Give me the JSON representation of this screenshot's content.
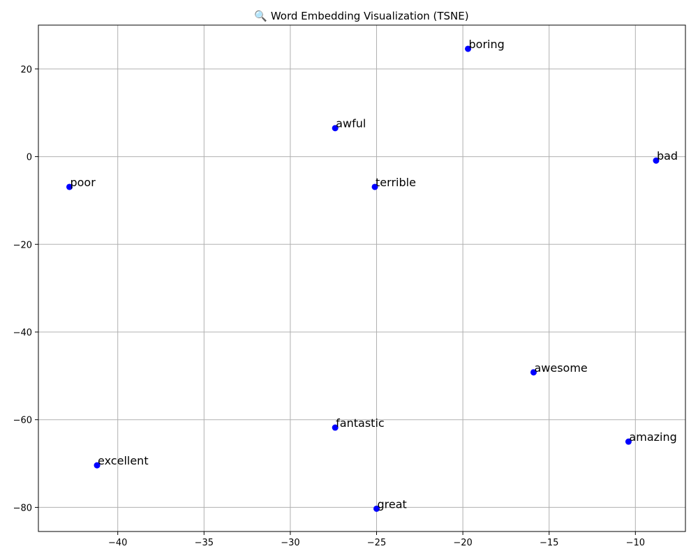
{
  "chart_data": {
    "type": "scatter",
    "title": "🔍 Word Embedding Visualization (TSNE)",
    "xlabel": "",
    "ylabel": "",
    "xlim": [
      -44.6,
      -7.1
    ],
    "ylim": [
      -85.5,
      30.0
    ],
    "xticks": [
      -40,
      -35,
      -30,
      -25,
      -20,
      -15,
      -10
    ],
    "yticks": [
      20,
      0,
      -20,
      -40,
      -60,
      -80
    ],
    "grid": true,
    "marker_color": "#0000ff",
    "points": [
      {
        "label": "boring",
        "x": -19.7,
        "y": 24.6
      },
      {
        "label": "awful",
        "x": -27.4,
        "y": 6.5
      },
      {
        "label": "bad",
        "x": -8.8,
        "y": -0.9
      },
      {
        "label": "poor",
        "x": -42.8,
        "y": -6.9
      },
      {
        "label": "terrible",
        "x": -25.1,
        "y": -6.9
      },
      {
        "label": "awesome",
        "x": -15.9,
        "y": -49.2
      },
      {
        "label": "fantastic",
        "x": -27.4,
        "y": -61.8
      },
      {
        "label": "amazing",
        "x": -10.4,
        "y": -65.0
      },
      {
        "label": "excellent",
        "x": -41.2,
        "y": -70.4
      },
      {
        "label": "great",
        "x": -25.0,
        "y": -80.3
      }
    ]
  }
}
